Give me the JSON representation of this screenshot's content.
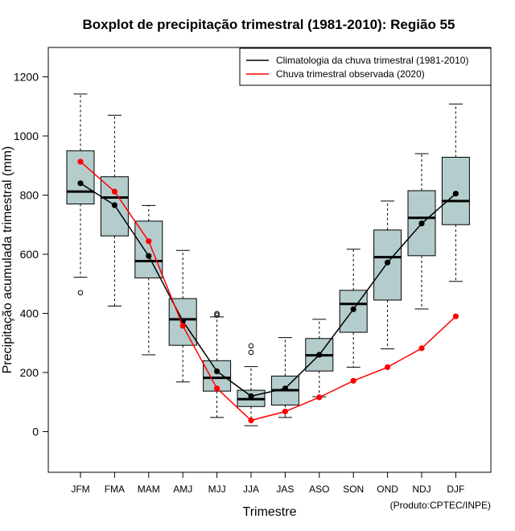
{
  "colors": {
    "box_fill": "#b4cccc",
    "climatology": "#000000",
    "observed": "#ff0000"
  },
  "credit": "(Produto:CPTEC/INPE)",
  "chart_data": {
    "type": "boxplot",
    "title": "Boxplot de precipitação trimestral (1981-2010): Região 55",
    "xlabel": "Trimestre",
    "ylabel": "Precipitação acumulada trimestral (mm)",
    "ylim": [
      -130,
      1300
    ],
    "yticks": [
      0,
      200,
      400,
      600,
      800,
      1000,
      1200
    ],
    "categories": [
      "JFM",
      "FMA",
      "MAM",
      "AMJ",
      "MJJ",
      "JJA",
      "JAS",
      "ASO",
      "SON",
      "OND",
      "NDJ",
      "DJF"
    ],
    "boxes": [
      {
        "whisker_low": 522,
        "q1": 770,
        "median": 812,
        "q3": 950,
        "whisker_high": 1142,
        "outliers": [
          470
        ]
      },
      {
        "whisker_low": 425,
        "q1": 662,
        "median": 792,
        "q3": 862,
        "whisker_high": 1070,
        "outliers": []
      },
      {
        "whisker_low": 260,
        "q1": 520,
        "median": 577,
        "q3": 712,
        "whisker_high": 765,
        "outliers": []
      },
      {
        "whisker_low": 168,
        "q1": 292,
        "median": 380,
        "q3": 450,
        "whisker_high": 613,
        "outliers": []
      },
      {
        "whisker_low": 48,
        "q1": 137,
        "median": 182,
        "q3": 240,
        "whisker_high": 388,
        "outliers": [
          394,
          399
        ]
      },
      {
        "whisker_low": 20,
        "q1": 85,
        "median": 110,
        "q3": 140,
        "whisker_high": 220,
        "outliers": [
          268,
          290
        ]
      },
      {
        "whisker_low": 48,
        "q1": 90,
        "median": 140,
        "q3": 188,
        "whisker_high": 318,
        "outliers": []
      },
      {
        "whisker_low": 118,
        "q1": 205,
        "median": 258,
        "q3": 315,
        "whisker_high": 380,
        "outliers": []
      },
      {
        "whisker_low": 218,
        "q1": 336,
        "median": 432,
        "q3": 478,
        "whisker_high": 617,
        "outliers": []
      },
      {
        "whisker_low": 280,
        "q1": 445,
        "median": 590,
        "q3": 682,
        "whisker_high": 780,
        "outliers": []
      },
      {
        "whisker_low": 415,
        "q1": 595,
        "median": 723,
        "q3": 815,
        "whisker_high": 940,
        "outliers": []
      },
      {
        "whisker_low": 508,
        "q1": 700,
        "median": 780,
        "q3": 928,
        "whisker_high": 1108,
        "outliers": []
      }
    ],
    "series": [
      {
        "name": "Climatologia da chuva trimestral (1981-2010)",
        "color": "#000000",
        "values": [
          840,
          766,
          594,
          374,
          204,
          120,
          146,
          260,
          414,
          572,
          704,
          805
        ]
      },
      {
        "name": "Chuva trimestral observada (2020)",
        "color": "#ff0000",
        "values": [
          913,
          812,
          644,
          358,
          146,
          38,
          68,
          116,
          172,
          218,
          282,
          390
        ]
      }
    ],
    "legend_position": "top-right",
    "grid": false
  }
}
